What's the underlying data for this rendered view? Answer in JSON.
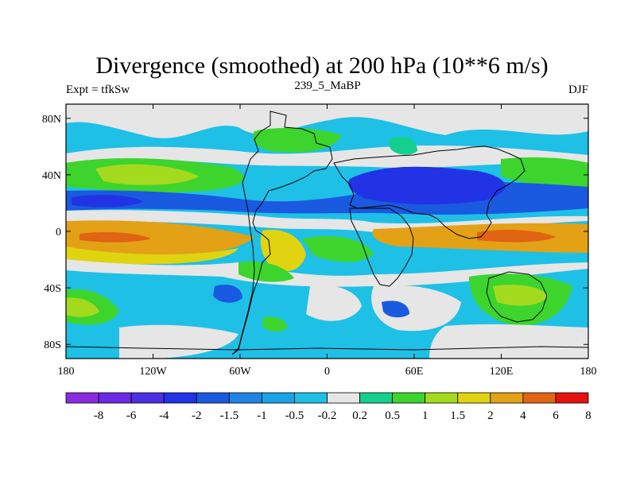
{
  "chart_data": {
    "type": "filled-contour-map",
    "title": "Divergence (smoothed) at 200 hPa (10**6 m/s)",
    "subtitle_left": "Expt = tfkSw",
    "subtitle_center": "239_5_MaBP",
    "subtitle_right": "DJF",
    "x_tick_labels": [
      "180",
      "120W",
      "60W",
      "0",
      "60E",
      "120E",
      "180"
    ],
    "x_tick_values": [
      -180,
      -120,
      -60,
      0,
      60,
      120,
      180
    ],
    "y_tick_labels": [
      "80N",
      "40N",
      "0",
      "40S",
      "80S"
    ],
    "y_tick_values": [
      80,
      40,
      0,
      -40,
      -80
    ],
    "xlim": [
      -180,
      180
    ],
    "ylim": [
      -90,
      90
    ],
    "colorbar": {
      "colors": [
        "#8a2be2",
        "#6a2ae6",
        "#4b2fe3",
        "#2233e5",
        "#1a5ae0",
        "#1f84e3",
        "#19a3e6",
        "#1ec0e6",
        "#e6e6e6",
        "#14d08c",
        "#3cd42d",
        "#a4da1e",
        "#e0d410",
        "#e3a116",
        "#e06414",
        "#e5110f"
      ],
      "labels": [
        "-8",
        "-6",
        "-4",
        "-2",
        "-1.5",
        "-1",
        "-0.5",
        "-0.2",
        "0.2",
        "0.5",
        "1",
        "1.5",
        "2",
        "4",
        "6",
        "8"
      ]
    }
  }
}
